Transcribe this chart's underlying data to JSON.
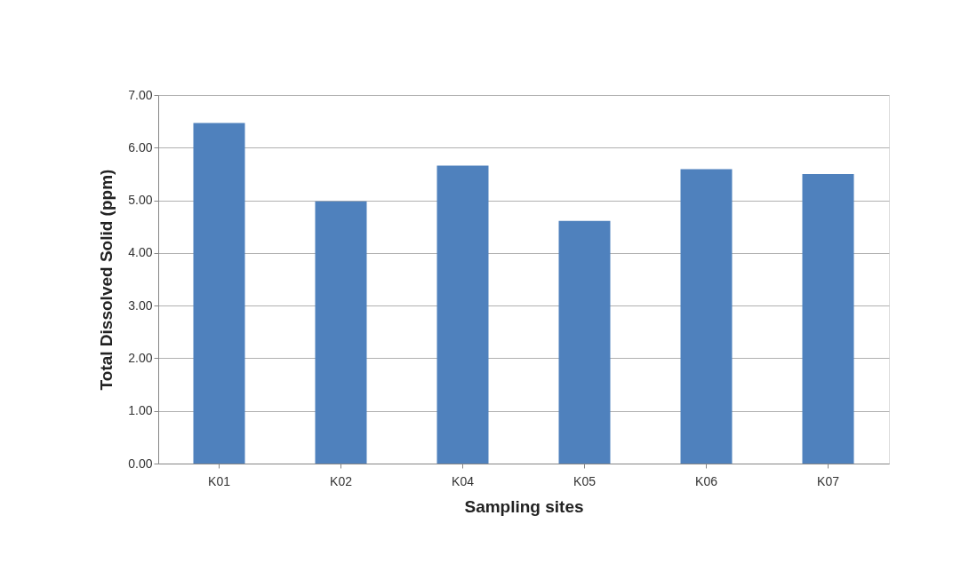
{
  "chart_data": {
    "type": "bar",
    "xlabel": "Sampling sites",
    "ylabel": "Total Dissolved Solid (ppm)",
    "categories": [
      "K01",
      "K02",
      "K04",
      "K05",
      "K06",
      "K07"
    ],
    "values": [
      6.47,
      4.98,
      5.66,
      4.61,
      5.59,
      5.5
    ],
    "color": "#4f81bd",
    "ylim": [
      0,
      7
    ],
    "yticks": [
      {
        "value": 0,
        "label": "0.00"
      },
      {
        "value": 1,
        "label": "1.00"
      },
      {
        "value": 2,
        "label": "2.00"
      },
      {
        "value": 3,
        "label": "3.00"
      },
      {
        "value": 4,
        "label": "4.00"
      },
      {
        "value": 5,
        "label": "5.00"
      },
      {
        "value": 6,
        "label": "6.00"
      },
      {
        "value": 7,
        "label": "7.00"
      }
    ],
    "grid": "y"
  }
}
